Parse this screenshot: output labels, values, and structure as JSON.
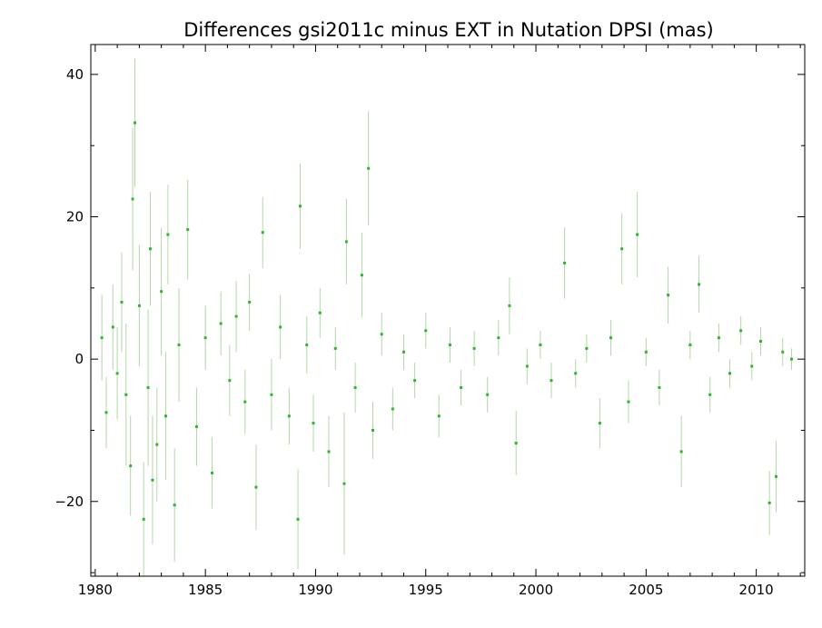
{
  "chart_data": {
    "type": "scatter",
    "title": "Differences gsi2011c minus EXT in Nutation DPSI (mas)",
    "xlabel": "",
    "ylabel": "",
    "xlim": [
      1979.8,
      2012.2
    ],
    "ylim": [
      -30.5,
      44.2
    ],
    "x_ticks": [
      1980,
      1985,
      1990,
      1995,
      2000,
      2005,
      2010
    ],
    "y_ticks": [
      -20,
      0,
      20,
      40
    ],
    "x_tick_labels": [
      "1980",
      "1985",
      "1990",
      "1995",
      "2000",
      "2005",
      "2010"
    ],
    "y_tick_labels": [
      "−20",
      "0",
      "20",
      "40"
    ],
    "grid": false,
    "legend": "none",
    "colors": {
      "points": "#33b233",
      "error_bars": "#b4d6aa",
      "axes": "#000000"
    },
    "series": [
      {
        "points": [
          [
            1980.3,
            3.0,
            6.0
          ],
          [
            1980.5,
            -7.5,
            5.0
          ],
          [
            1980.8,
            4.5,
            6.0
          ],
          [
            1981.0,
            -2.0,
            6.5
          ],
          [
            1981.2,
            8.0,
            7.0
          ],
          [
            1981.4,
            -5.0,
            10.0
          ],
          [
            1981.6,
            -15.0,
            7.0
          ],
          [
            1981.7,
            22.5,
            10.0
          ],
          [
            1981.8,
            33.2,
            9.0
          ],
          [
            1982.0,
            7.5,
            8.5
          ],
          [
            1982.2,
            -22.5,
            8.0
          ],
          [
            1982.4,
            -4.0,
            11.0
          ],
          [
            1982.5,
            15.5,
            8.0
          ],
          [
            1982.6,
            -17.0,
            9.0
          ],
          [
            1982.8,
            -12.0,
            8.0
          ],
          [
            1983.0,
            9.5,
            9.0
          ],
          [
            1983.2,
            -8.0,
            9.0
          ],
          [
            1983.3,
            17.5,
            7.0
          ],
          [
            1983.6,
            -20.5,
            8.0
          ],
          [
            1983.8,
            2.0,
            8.0
          ],
          [
            1984.2,
            18.2,
            7.0
          ],
          [
            1984.6,
            -9.5,
            5.5
          ],
          [
            1985.0,
            3.0,
            4.5
          ],
          [
            1985.3,
            -16.0,
            5.0
          ],
          [
            1985.7,
            5.0,
            4.5
          ],
          [
            1986.1,
            -3.0,
            5.0
          ],
          [
            1986.4,
            6.0,
            5.0
          ],
          [
            1986.8,
            -6.0,
            4.5
          ],
          [
            1987.0,
            8.0,
            4.0
          ],
          [
            1987.3,
            -18.0,
            6.0
          ],
          [
            1987.6,
            17.8,
            5.0
          ],
          [
            1988.0,
            -5.0,
            5.0
          ],
          [
            1988.4,
            4.5,
            4.5
          ],
          [
            1988.8,
            -8.0,
            4.0
          ],
          [
            1989.2,
            -22.5,
            7.0
          ],
          [
            1989.3,
            21.5,
            6.0
          ],
          [
            1989.6,
            2.0,
            4.0
          ],
          [
            1989.9,
            -9.0,
            4.0
          ],
          [
            1990.2,
            6.5,
            3.5
          ],
          [
            1990.6,
            -13.0,
            5.0
          ],
          [
            1990.9,
            1.5,
            3.0
          ],
          [
            1991.3,
            -17.5,
            10.0
          ],
          [
            1991.4,
            16.5,
            6.0
          ],
          [
            1991.8,
            -4.0,
            3.5
          ],
          [
            1992.1,
            11.8,
            6.0
          ],
          [
            1992.4,
            26.8,
            8.0
          ],
          [
            1992.6,
            -10.0,
            4.0
          ],
          [
            1993.0,
            3.5,
            3.0
          ],
          [
            1993.5,
            -7.0,
            3.0
          ],
          [
            1994.0,
            1.0,
            2.5
          ],
          [
            1994.5,
            -3.0,
            2.5
          ],
          [
            1995.0,
            4.0,
            2.5
          ],
          [
            1995.6,
            -8.0,
            3.0
          ],
          [
            1996.1,
            2.0,
            2.5
          ],
          [
            1996.6,
            -4.0,
            2.5
          ],
          [
            1997.2,
            1.5,
            2.5
          ],
          [
            1997.8,
            -5.0,
            2.5
          ],
          [
            1998.3,
            3.0,
            2.5
          ],
          [
            1998.8,
            7.5,
            4.0
          ],
          [
            1999.1,
            -11.8,
            4.5
          ],
          [
            1999.6,
            -1.0,
            2.5
          ],
          [
            2000.2,
            2.0,
            2.0
          ],
          [
            2000.7,
            -3.0,
            2.5
          ],
          [
            2001.3,
            13.5,
            5.0
          ],
          [
            2001.8,
            -2.0,
            2.0
          ],
          [
            2002.3,
            1.5,
            2.0
          ],
          [
            2002.9,
            -9.0,
            3.5
          ],
          [
            2003.4,
            3.0,
            2.5
          ],
          [
            2003.9,
            15.5,
            5.0
          ],
          [
            2004.2,
            -6.0,
            3.0
          ],
          [
            2004.6,
            17.5,
            6.0
          ],
          [
            2005.0,
            1.0,
            2.0
          ],
          [
            2005.6,
            -4.0,
            2.5
          ],
          [
            2006.0,
            9.0,
            4.0
          ],
          [
            2006.6,
            -13.0,
            5.0
          ],
          [
            2007.0,
            2.0,
            2.0
          ],
          [
            2007.4,
            10.5,
            4.0
          ],
          [
            2007.9,
            -5.0,
            2.5
          ],
          [
            2008.3,
            3.0,
            2.0
          ],
          [
            2008.8,
            -2.0,
            2.0
          ],
          [
            2009.3,
            4.0,
            2.0
          ],
          [
            2009.8,
            -1.0,
            2.0
          ],
          [
            2010.2,
            2.5,
            2.0
          ],
          [
            2010.6,
            -20.2,
            4.5
          ],
          [
            2010.9,
            -16.5,
            5.0
          ],
          [
            2011.2,
            1.0,
            2.0
          ],
          [
            2011.6,
            0.0,
            1.5
          ]
        ]
      }
    ]
  }
}
